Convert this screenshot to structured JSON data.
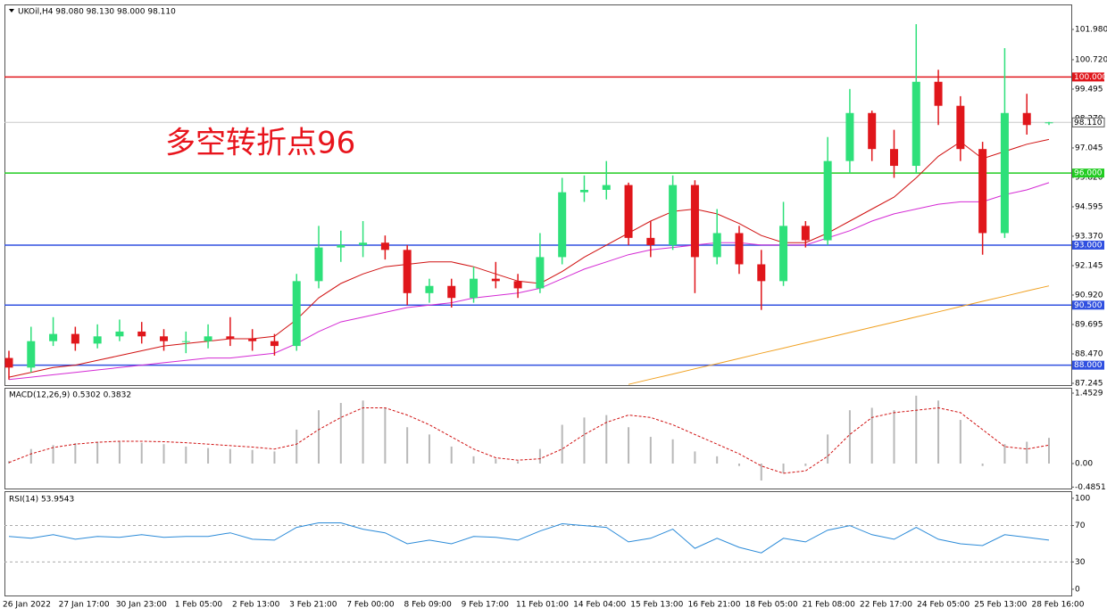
{
  "chart_data": [
    {
      "type": "candlestick",
      "title": "UKOil,H4 98.080 98.130 98.000 98.110",
      "annotation": "多空转折点96",
      "open": [
        88.3,
        87.9,
        89.0,
        89.3,
        88.9,
        89.2,
        89.4,
        89.2,
        89.0,
        89.0,
        89.2,
        89.1,
        89.0,
        88.8,
        91.5,
        92.9,
        93.0,
        93.1,
        92.8,
        91.0,
        91.3,
        90.8,
        91.6,
        91.5,
        91.2,
        92.5,
        95.2,
        95.3,
        95.5,
        93.3,
        93.0,
        95.5,
        92.5,
        93.5,
        92.2,
        91.5,
        93.8,
        93.2,
        96.5,
        98.5,
        97.0,
        96.3,
        99.8,
        98.8,
        97.0,
        93.5,
        98.5,
        98.08
      ],
      "high": [
        88.6,
        89.6,
        90.0,
        89.6,
        89.7,
        89.9,
        89.8,
        89.5,
        89.4,
        89.7,
        90.0,
        89.5,
        89.3,
        91.8,
        93.8,
        93.6,
        94.0,
        93.4,
        93.0,
        91.6,
        91.6,
        92.1,
        92.3,
        91.8,
        93.5,
        95.8,
        95.9,
        96.5,
        95.6,
        94.0,
        95.9,
        95.7,
        94.5,
        93.8,
        92.8,
        94.8,
        94.0,
        97.5,
        99.5,
        98.6,
        97.8,
        102.2,
        100.3,
        99.2,
        97.3,
        101.2,
        99.3,
        98.13
      ],
      "low": [
        87.4,
        87.7,
        88.8,
        88.6,
        88.7,
        89.0,
        88.9,
        88.6,
        88.5,
        88.7,
        88.8,
        88.6,
        88.4,
        88.6,
        91.2,
        92.3,
        92.5,
        92.4,
        90.5,
        90.6,
        90.4,
        90.6,
        91.2,
        90.8,
        91.0,
        92.2,
        94.8,
        94.9,
        93.0,
        92.5,
        92.8,
        91.0,
        92.2,
        91.8,
        90.3,
        91.3,
        92.9,
        93.0,
        96.0,
        96.5,
        95.8,
        96.0,
        98.0,
        96.5,
        92.6,
        93.3,
        97.6,
        98.0
      ],
      "close": [
        87.9,
        89.0,
        89.3,
        88.9,
        89.2,
        89.4,
        89.2,
        89.0,
        89.0,
        89.2,
        89.1,
        89.0,
        88.8,
        91.5,
        92.9,
        93.0,
        93.1,
        92.8,
        91.0,
        91.3,
        90.8,
        91.6,
        91.5,
        91.2,
        92.5,
        95.2,
        95.3,
        95.5,
        93.3,
        93.0,
        95.5,
        92.5,
        93.5,
        92.2,
        91.5,
        93.8,
        93.2,
        96.5,
        98.5,
        97.0,
        96.3,
        99.8,
        98.8,
        97.0,
        93.5,
        98.5,
        98.0,
        98.11
      ],
      "up_color": "#2ee07a",
      "down_color": "#e0161b",
      "moving_averages": [
        {
          "color": "#d01010",
          "values": [
            87.5,
            87.7,
            87.9,
            88.0,
            88.2,
            88.4,
            88.6,
            88.8,
            88.9,
            89.0,
            89.1,
            89.1,
            89.2,
            89.9,
            90.8,
            91.4,
            91.8,
            92.1,
            92.2,
            92.3,
            92.3,
            92.1,
            91.8,
            91.5,
            91.4,
            91.9,
            92.5,
            93.0,
            93.5,
            94.0,
            94.4,
            94.5,
            94.3,
            93.9,
            93.4,
            93.1,
            93.1,
            93.5,
            94.0,
            94.5,
            95.0,
            95.8,
            96.7,
            97.3,
            96.6,
            96.9,
            97.2,
            97.4
          ]
        },
        {
          "color": "#d42ad4",
          "values": [
            87.4,
            87.5,
            87.6,
            87.7,
            87.8,
            87.9,
            88.0,
            88.1,
            88.2,
            88.3,
            88.3,
            88.4,
            88.5,
            88.9,
            89.4,
            89.8,
            90.0,
            90.2,
            90.4,
            90.5,
            90.6,
            90.8,
            90.9,
            91.0,
            91.2,
            91.6,
            92.0,
            92.3,
            92.6,
            92.8,
            92.9,
            93.0,
            93.1,
            93.1,
            93.0,
            93.0,
            93.0,
            93.3,
            93.6,
            94.0,
            94.3,
            94.5,
            94.7,
            94.8,
            94.8,
            95.1,
            95.3,
            95.6
          ]
        },
        {
          "color": "#f0a020",
          "values": [
            null,
            null,
            null,
            null,
            null,
            null,
            null,
            null,
            null,
            null,
            null,
            null,
            null,
            null,
            null,
            null,
            null,
            null,
            null,
            null,
            null,
            null,
            null,
            null,
            null,
            null,
            null,
            null,
            87.2,
            87.42,
            87.63,
            87.85,
            88.06,
            88.28,
            88.5,
            88.71,
            88.93,
            89.14,
            89.36,
            89.58,
            89.79,
            90.01,
            90.22,
            90.44,
            90.66,
            90.87,
            91.09,
            91.3
          ]
        }
      ],
      "levels": [
        {
          "value": 100,
          "label": "100.000",
          "color": "#e0161b"
        },
        {
          "value": 96,
          "label": "96.000",
          "color": "#22cc22"
        },
        {
          "value": 93,
          "label": "93.000",
          "color": "#3050e0"
        },
        {
          "value": 90.5,
          "label": "90.500",
          "color": "#3050e0"
        },
        {
          "value": 88,
          "label": "88.000",
          "color": "#3050e0"
        }
      ],
      "current_price": {
        "value": 98.11,
        "label": "98.110"
      },
      "ylim": [
        87.17,
        103.02
      ],
      "yticks": [
        {
          "value": 101.98,
          "label": "101.980"
        },
        {
          "value": 100.72,
          "label": "100.720"
        },
        {
          "value": 99.495,
          "label": "99.495"
        },
        {
          "value": 98.27,
          "label": "98.270"
        },
        {
          "value": 97.045,
          "label": "97.045"
        },
        {
          "value": 95.82,
          "label": "95.820"
        },
        {
          "value": 94.595,
          "label": "94.595"
        },
        {
          "value": 93.37,
          "label": "93.370"
        },
        {
          "value": 92.145,
          "label": "92.145"
        },
        {
          "value": 90.92,
          "label": "90.920"
        },
        {
          "value": 89.695,
          "label": "89.695"
        },
        {
          "value": 88.47,
          "label": "88.470"
        },
        {
          "value": 87.245,
          "label": "87.245"
        }
      ],
      "xticklabels": [
        "26 Jan 2022",
        "27 Jan 17:00",
        "30 Jan 23:00",
        "1 Feb 05:00",
        "2 Feb 13:00",
        "3 Feb 21:00",
        "7 Feb 00:00",
        "8 Feb 09:00",
        "9 Feb 17:00",
        "11 Feb 01:00",
        "14 Feb 04:00",
        "15 Feb 13:00",
        "16 Feb 21:00",
        "18 Feb 05:00",
        "21 Feb 08:00",
        "22 Feb 17:00",
        "24 Feb 05:00",
        "25 Feb 13:00",
        "28 Feb 16:00"
      ]
    },
    {
      "type": "macd",
      "title": "MACD(12,26,9) 0.5302 0.3832",
      "histogram": [
        0.05,
        0.3,
        0.38,
        0.42,
        0.45,
        0.45,
        0.43,
        0.4,
        0.35,
        0.32,
        0.3,
        0.28,
        0.25,
        0.7,
        1.1,
        1.25,
        1.3,
        1.15,
        0.75,
        0.6,
        0.35,
        0.15,
        0.1,
        0.05,
        0.3,
        0.8,
        0.95,
        1.0,
        0.75,
        0.55,
        0.5,
        0.25,
        0.15,
        -0.05,
        -0.35,
        -0.2,
        -0.05,
        0.6,
        1.1,
        1.15,
        1.1,
        1.4,
        1.3,
        0.9,
        -0.05,
        0.4,
        0.45,
        0.53
      ],
      "signal": [
        0.02,
        0.2,
        0.33,
        0.4,
        0.44,
        0.46,
        0.46,
        0.45,
        0.43,
        0.4,
        0.37,
        0.34,
        0.3,
        0.4,
        0.7,
        0.95,
        1.15,
        1.15,
        1.0,
        0.8,
        0.55,
        0.3,
        0.12,
        0.07,
        0.1,
        0.3,
        0.6,
        0.85,
        1.0,
        0.95,
        0.8,
        0.6,
        0.4,
        0.2,
        -0.05,
        -0.2,
        -0.15,
        0.15,
        0.6,
        0.95,
        1.05,
        1.1,
        1.15,
        1.05,
        0.7,
        0.35,
        0.3,
        0.38
      ],
      "histogram_color": "#b8b8b8",
      "signal_color": "#d01010",
      "ylim": [
        -0.515,
        1.563
      ],
      "yticks": [
        1.4529,
        {
          "value": 0,
          "label": "0.00"
        },
        -0.4851
      ]
    },
    {
      "type": "line",
      "title": "RSI(14) 53.9543",
      "color": "#2a8ad8",
      "values": [
        58,
        56,
        60,
        55,
        58,
        57,
        60,
        57,
        58,
        58,
        62,
        55,
        54,
        68,
        73,
        73,
        66,
        62,
        50,
        54,
        50,
        58,
        57,
        54,
        64,
        72,
        70,
        68,
        52,
        56,
        66,
        45,
        56,
        46,
        40,
        56,
        52,
        65,
        70,
        60,
        55,
        68,
        55,
        50,
        48,
        60,
        57,
        54
      ],
      "levels": [
        70,
        30
      ],
      "ylim": [
        -6.9,
        107.8
      ],
      "yticks": [
        100,
        70,
        30,
        0
      ]
    }
  ]
}
